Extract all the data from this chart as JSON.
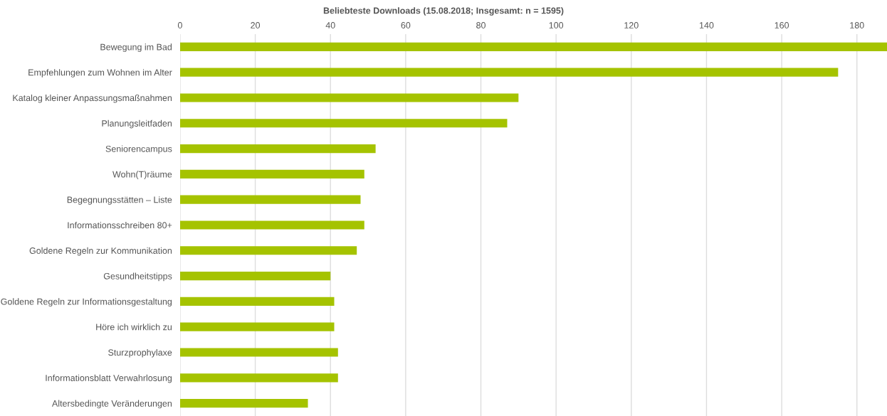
{
  "chart_data": {
    "type": "bar",
    "orientation": "horizontal",
    "title": "Beliebteste Downloads (15.08.2018; Insgesamt: n = 1595)",
    "categories": [
      "Bewegung im Bad",
      "Empfehlungen zum Wohnen im Alter",
      "Katalog kleiner Anpassungsmaßnahmen",
      "Planungsleitfaden",
      "Seniorencampus",
      "Wohn(T)räume",
      "Begegnungsstätten – Liste",
      "Informationsschreiben 80+",
      "Goldene Regeln zur Kommunikation",
      "Gesundheitstipps",
      "Goldene Regeln zur Informationsgestaltung",
      "Höre ich wirklich zu",
      "Sturzprophylaxe",
      "Informationsblatt Verwahrlosung",
      "Altersbedingte Veränderungen"
    ],
    "values": [
      188,
      175,
      90,
      87,
      52,
      49,
      48,
      49,
      47,
      40,
      41,
      41,
      42,
      42,
      34
    ],
    "color": "#a5c300",
    "xlim": [
      0,
      188
    ],
    "xticks": [
      0,
      20,
      40,
      60,
      80,
      100,
      120,
      140,
      160,
      180
    ],
    "grid": "x"
  }
}
